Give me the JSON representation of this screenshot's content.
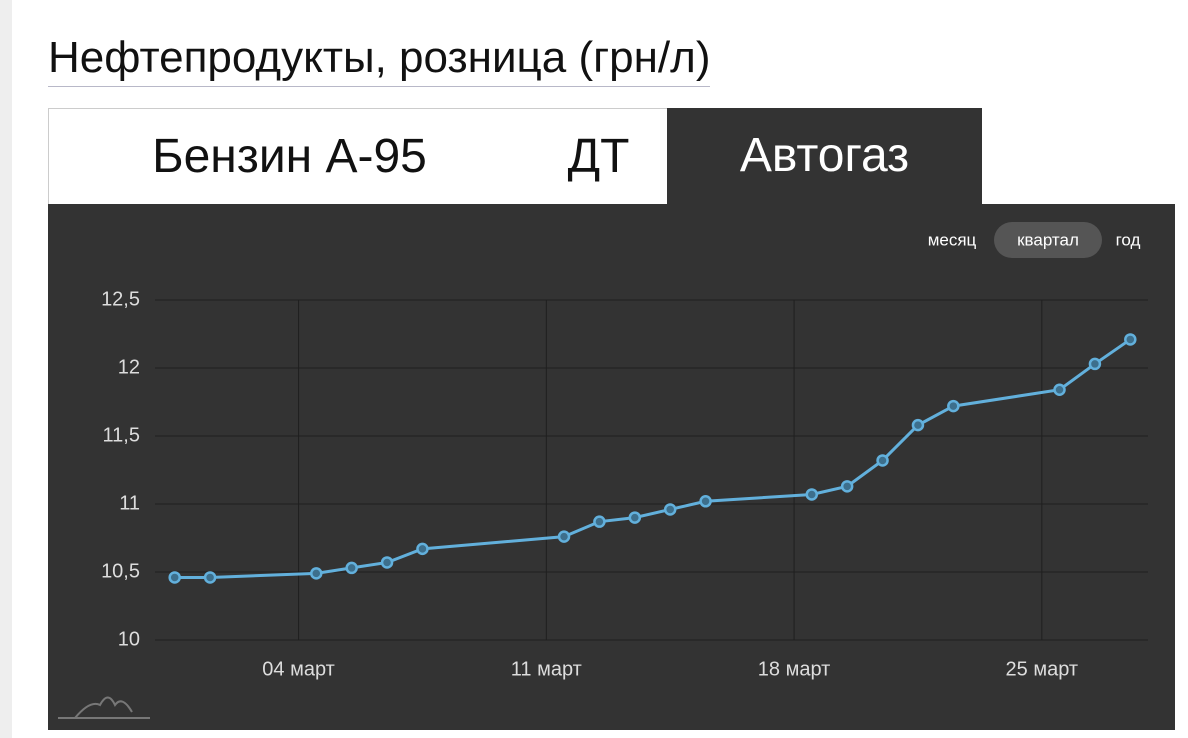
{
  "header": {
    "title": "Нефтепродукты, розница (грн/л)"
  },
  "tabs": [
    "Бензин А-95",
    "ДТ",
    "Автогаз"
  ],
  "range_buttons": [
    "месяц",
    "квартал",
    "год"
  ],
  "chart_data": {
    "type": "line",
    "x": [
      0.5,
      1.5,
      4.5,
      5.5,
      6.5,
      7.5,
      11.5,
      12.5,
      13.5,
      14.5,
      15.5,
      18.5,
      19.5,
      20.5,
      21.5,
      22.5,
      25.5,
      26.5,
      27.5
    ],
    "series": [
      {
        "name": "Автогаз",
        "color": "#62b0dc",
        "values": [
          10.46,
          10.46,
          10.49,
          10.53,
          10.57,
          10.67,
          10.76,
          10.87,
          10.9,
          10.96,
          11.02,
          11.07,
          11.13,
          11.32,
          11.58,
          11.72,
          11.84,
          12.03,
          12.21
        ]
      }
    ],
    "xlim": [
      0,
      28
    ],
    "xticks": [
      {
        "value": 4,
        "label": "04 март"
      },
      {
        "value": 11,
        "label": "11 март"
      },
      {
        "value": 18,
        "label": "18 март"
      },
      {
        "value": 25,
        "label": "25 март"
      }
    ],
    "ylim": [
      10,
      12.5
    ],
    "yticks": [
      10,
      {
        "value": 10.5,
        "label": "10,5"
      },
      11,
      {
        "value": 11.5,
        "label": "11,5"
      },
      12,
      {
        "value": 12.5,
        "label": "12,5"
      }
    ],
    "grid": true
  }
}
